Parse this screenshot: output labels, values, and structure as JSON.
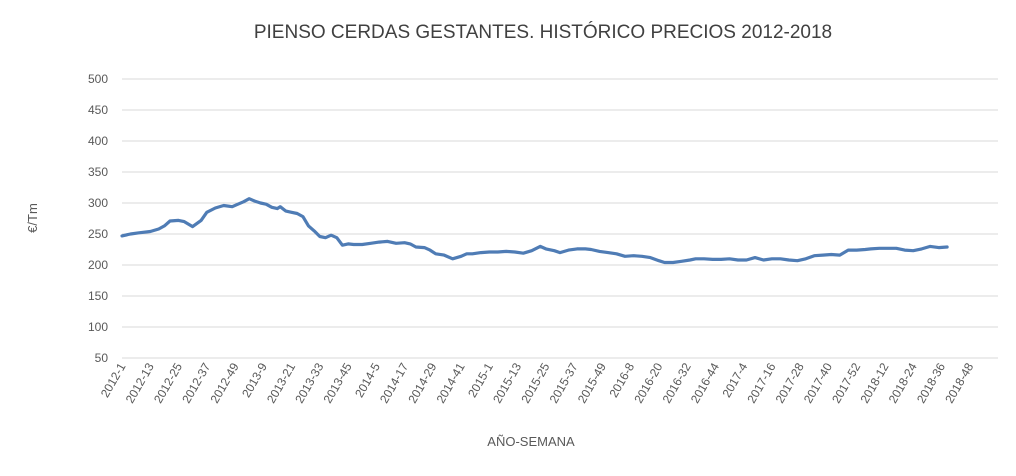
{
  "chart_data": {
    "type": "line",
    "title": "PIENSO CERDAS GESTANTES. HISTÓRICO PRECIOS 2012-2018",
    "xlabel": "AÑO-SEMANA",
    "ylabel": "€/Tm",
    "ylim": [
      50,
      500
    ],
    "yticks": [
      50,
      100,
      150,
      200,
      250,
      300,
      350,
      400,
      450,
      500
    ],
    "grid": true,
    "categories": [
      "2012-1",
      "2012-13",
      "2012-25",
      "2012-37",
      "2012-49",
      "2013-9",
      "2013-21",
      "2013-33",
      "2013-45",
      "2014-5",
      "2014-17",
      "2014-29",
      "2014-41",
      "2015-1",
      "2015-13",
      "2015-25",
      "2015-37",
      "2015-49",
      "2016-8",
      "2016-20",
      "2016-32",
      "2016-44",
      "2017-4",
      "2017-16",
      "2017-28",
      "2017-40",
      "2017-52",
      "2018-12",
      "2018-24",
      "2018-36",
      "2018-48"
    ],
    "series": [
      {
        "x": [
          0,
          0.3,
          0.6,
          1,
          1.3,
          1.5,
          1.7,
          2,
          2.2,
          2.5,
          2.8,
          3.0,
          3.3,
          3.6,
          3.9,
          4.1,
          4.3,
          4.5,
          4.7,
          4.9,
          5.1,
          5.3,
          5.5,
          5.6,
          5.8,
          6.0,
          6.2,
          6.4,
          6.6,
          6.8,
          7.0,
          7.2,
          7.4,
          7.6,
          7.8,
          8.0,
          8.2,
          8.5,
          8.8,
          9.1,
          9.4,
          9.7,
          10.0,
          10.2,
          10.4,
          10.7,
          10.9,
          11.1,
          11.4,
          11.7,
          12.0,
          12.2,
          12.4,
          12.7,
          13.0,
          13.3,
          13.6,
          13.9,
          14.2,
          14.5,
          14.8,
          15.0,
          15.3,
          15.5,
          15.8,
          16.1,
          16.4,
          16.6,
          16.9,
          17.2,
          17.5,
          17.8,
          18.1,
          18.4,
          18.7,
          19.0,
          19.2,
          19.5,
          19.8,
          20.1,
          20.3,
          20.6,
          20.9,
          21.2,
          21.5,
          21.8,
          22.1,
          22.4,
          22.7,
          23.0,
          23.3,
          23.6,
          23.9,
          24.2,
          24.5,
          24.8,
          25.1,
          25.4,
          25.7,
          26.0,
          26.3,
          26.5,
          26.8,
          27.1,
          27.4,
          27.7,
          28.0,
          28.3,
          28.6,
          28.9,
          29.2
        ],
        "values": [
          247,
          250,
          252,
          254,
          258,
          263,
          271,
          272,
          270,
          262,
          272,
          285,
          292,
          296,
          294,
          298,
          302,
          307,
          303,
          300,
          298,
          293,
          291,
          294,
          287,
          285,
          283,
          278,
          263,
          255,
          246,
          244,
          248,
          244,
          232,
          234,
          233,
          233,
          235,
          237,
          238,
          235,
          236,
          234,
          229,
          228,
          224,
          218,
          216,
          210,
          214,
          218,
          218,
          220,
          221,
          221,
          222,
          221,
          219,
          223,
          230,
          226,
          223,
          220,
          224,
          226,
          226,
          225,
          222,
          220,
          218,
          214,
          215,
          214,
          212,
          207,
          204,
          204,
          206,
          208,
          210,
          210,
          209,
          209,
          210,
          208,
          208,
          212,
          208,
          210,
          210,
          208,
          207,
          210,
          215,
          216,
          217,
          216,
          224,
          224,
          225,
          226,
          227,
          227,
          227,
          224,
          223,
          226,
          230,
          228,
          229
        ]
      }
    ]
  }
}
